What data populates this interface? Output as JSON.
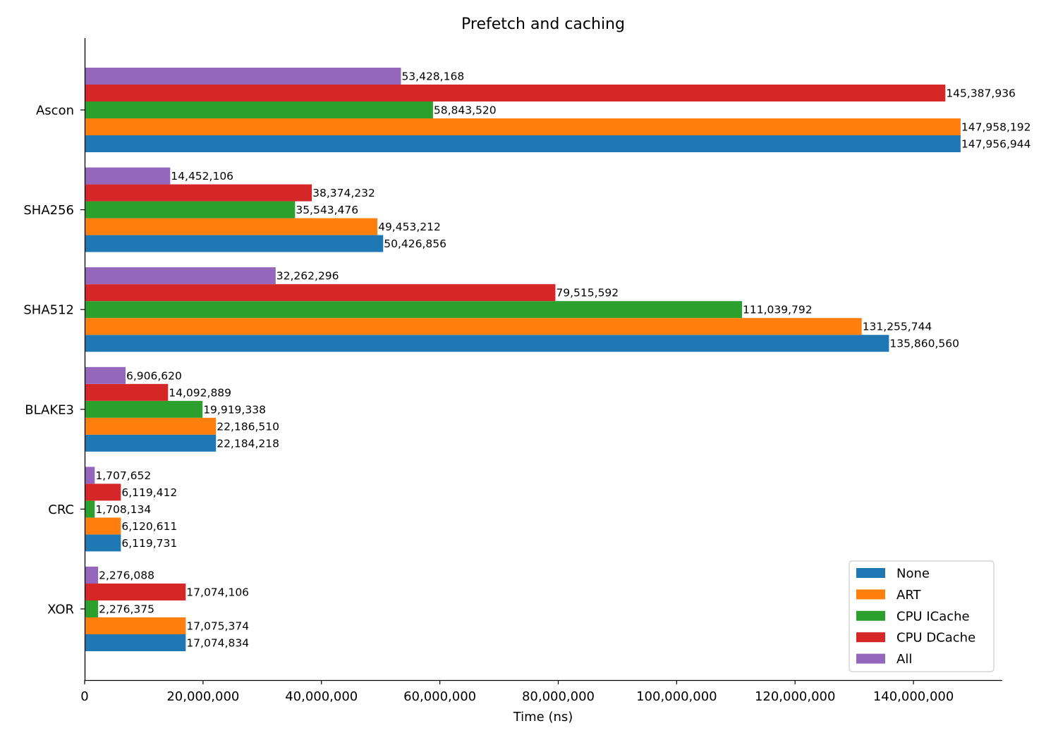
{
  "chart_data": {
    "type": "bar",
    "orientation": "horizontal",
    "title": "Prefetch and caching",
    "xlabel": "Time (ns)",
    "ylabel": "",
    "xlim": [
      0,
      155000000
    ],
    "xticks": [
      0,
      20000000,
      40000000,
      60000000,
      80000000,
      100000000,
      120000000,
      140000000
    ],
    "xtick_labels": [
      "0",
      "20,000,000",
      "40,000,000",
      "60,000,000",
      "80,000,000",
      "100,000,000",
      "120,000,000",
      "140,000,000"
    ],
    "categories": [
      "Ascon",
      "SHA256",
      "SHA512",
      "BLAKE3",
      "CRC",
      "XOR"
    ],
    "series": [
      {
        "name": "None",
        "color": "#1f77b4",
        "values": [
          147956944,
          50426856,
          135860560,
          22184218,
          6119731,
          17074834
        ],
        "labels": [
          "147,956,944",
          "50,426,856",
          "135,860,560",
          "22,184,218",
          "6,119,731",
          "17,074,834"
        ]
      },
      {
        "name": "ART",
        "color": "#ff7f0e",
        "values": [
          147958192,
          49453212,
          131255744,
          22186510,
          6120611,
          17075374
        ],
        "labels": [
          "147,958,192",
          "49,453,212",
          "131,255,744",
          "22,186,510",
          "6,120,611",
          "17,075,374"
        ]
      },
      {
        "name": "CPU ICache",
        "color": "#2ca02c",
        "values": [
          58843520,
          35543476,
          111039792,
          19919338,
          1708134,
          2276375
        ],
        "labels": [
          "58,843,520",
          "35,543,476",
          "111,039,792",
          "19,919,338",
          "1,708,134",
          "2,276,375"
        ]
      },
      {
        "name": "CPU DCache",
        "color": "#d62728",
        "values": [
          145387936,
          38374232,
          79515592,
          14092889,
          6119412,
          17074106
        ],
        "labels": [
          "145,387,936",
          "38,374,232",
          "79,515,592",
          "14,092,889",
          "6,119,412",
          "17,074,106"
        ]
      },
      {
        "name": "All",
        "color": "#9467bd",
        "values": [
          53428168,
          14452106,
          32262296,
          6906620,
          1707652,
          2276088
        ],
        "labels": [
          "53,428,168",
          "14,452,106",
          "32,262,296",
          "6,906,620",
          "1,707,652",
          "2,276,088"
        ]
      }
    ],
    "legend": {
      "position": "lower-right",
      "entries": [
        "None",
        "ART",
        "CPU ICache",
        "CPU DCache",
        "All"
      ]
    },
    "grid": false
  }
}
